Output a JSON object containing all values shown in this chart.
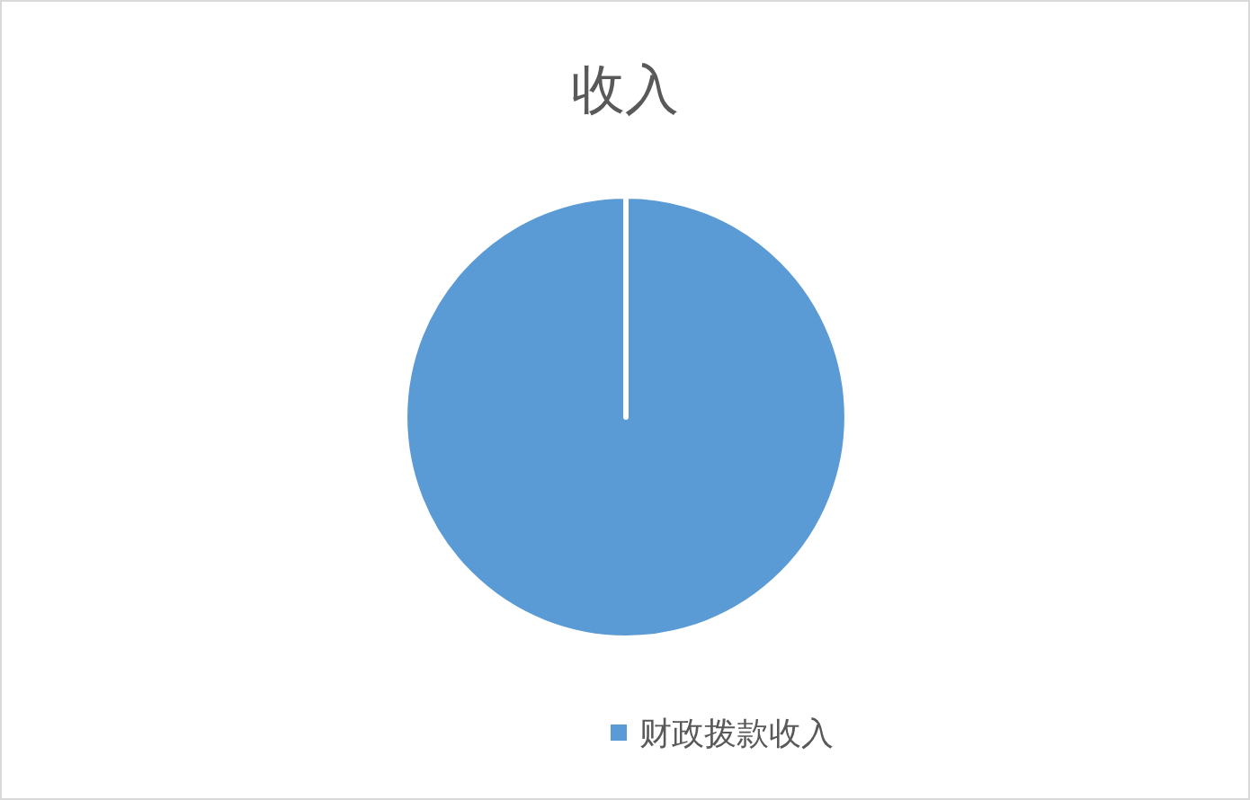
{
  "chart_data": {
    "type": "pie",
    "title": "收入",
    "categories": [
      "财政拨款收入"
    ],
    "values": [
      100
    ],
    "colors": [
      "#5b9bd5"
    ],
    "legend": "bottom"
  }
}
